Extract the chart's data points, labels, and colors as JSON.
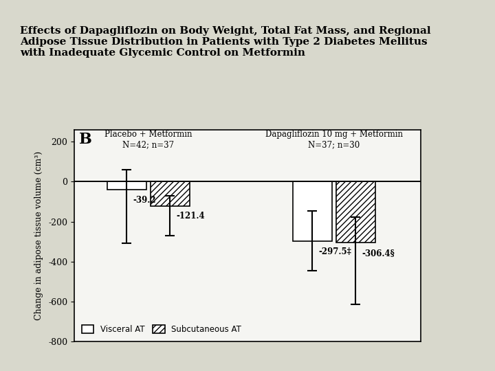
{
  "title_line1": "Effects of Dapagliflozin on Body Weight, Total Fat Mass, and Regional",
  "title_line2": "Adipose Tissue Distribution in Patients with Type 2 Diabetes Mellitus",
  "title_line3": "with Inadequate Glycemic Control on Metformin",
  "panel_label": "B",
  "group1_label": "Placebo + Metformin\nN=42; n=37",
  "group2_label": "Dapagliflozin 10 mg + Metformin\nN=37; n=30",
  "ylabel": "Change in adipose tissue volume (cm³)",
  "ylim": [
    -800,
    260
  ],
  "yticks": [
    -800,
    -600,
    -400,
    -200,
    0,
    200
  ],
  "visceral_values": [
    -39.2,
    -297.5
  ],
  "subcutaneous_values": [
    -121.4,
    -306.4
  ],
  "visceral_errors_low": [
    270,
    150
  ],
  "visceral_errors_high": [
    100,
    150
  ],
  "subcutaneous_errors_low": [
    150,
    310
  ],
  "subcutaneous_errors_high": [
    50,
    130
  ],
  "visceral_labels": [
    "-39.2",
    "-297.5‡"
  ],
  "subcutaneous_labels": [
    "-121.4",
    "-306.4§"
  ],
  "legend_visceral": "Visceral AT",
  "legend_subcutaneous": "Subcutaneous AT",
  "bar_width": 0.35,
  "group_positions": [
    1.0,
    2.5
  ],
  "bg_color": "#e8e8e0",
  "plot_bg_color": "#f0f0ee",
  "hatch_pattern": "////",
  "bar_edgecolor": "#000000",
  "bar_facecolor_visceral": "#ffffff",
  "bar_facecolor_subcutaneous": "#d0d0d0"
}
